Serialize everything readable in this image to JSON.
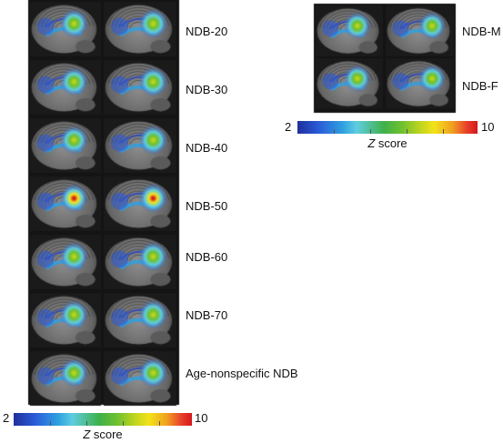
{
  "left_panel": {
    "rows": [
      "NDB-20",
      "NDB-30",
      "NDB-40",
      "NDB-50",
      "NDB-60",
      "NDB-70",
      "Age-nonspecific NDB"
    ]
  },
  "right_panel": {
    "rows": [
      "NDB-M",
      "NDB-F"
    ]
  },
  "colorbar_left": {
    "min": "2",
    "max": "10",
    "title_italic": "Z",
    "title_rest": " score"
  },
  "colorbar_right": {
    "min": "2",
    "max": "10",
    "title_italic": "Z",
    "title_rest": " score"
  },
  "colors": {
    "frame": "#141414",
    "scale_low": "#1f2f9b",
    "scale_mid": "#3fb04a",
    "scale_high": "#d4181c"
  }
}
